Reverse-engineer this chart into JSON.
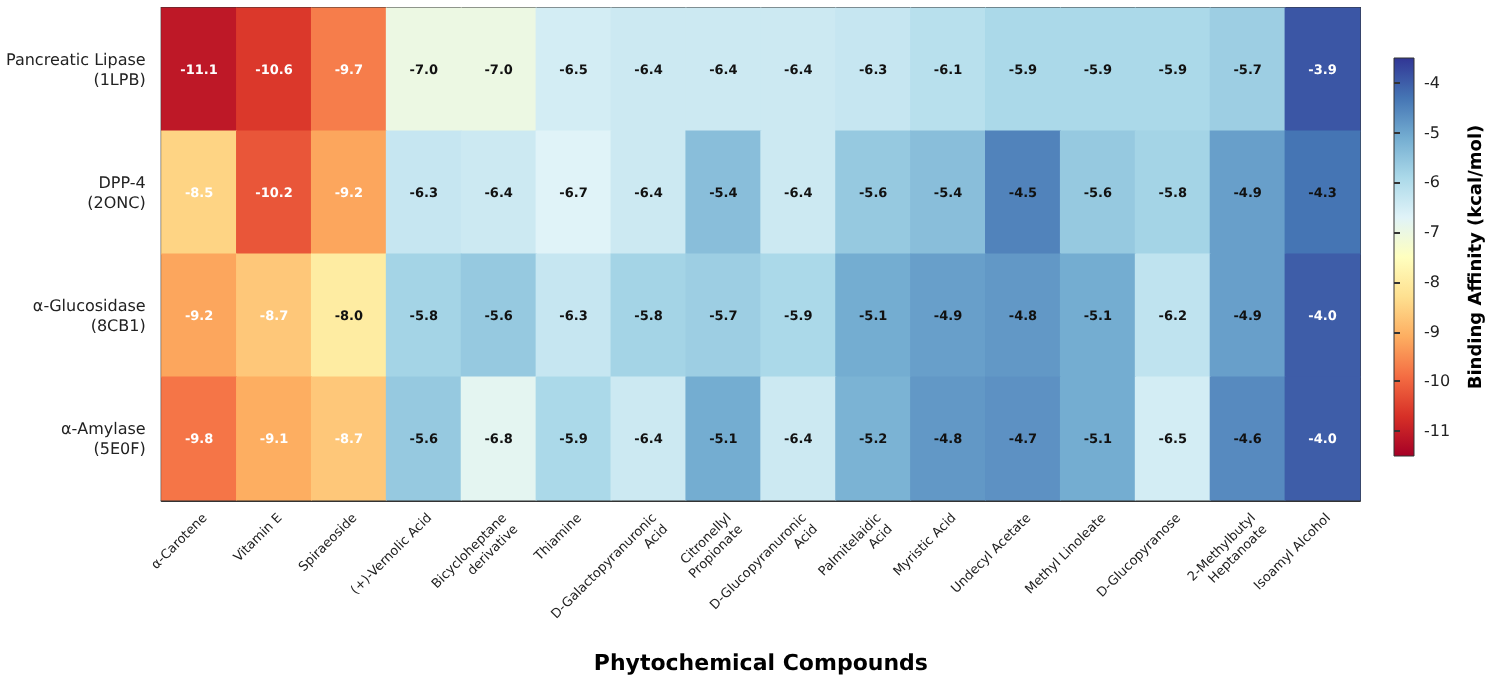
{
  "chart_data": {
    "type": "heatmap",
    "xlabel": "Phytochemical Compounds",
    "clabel": "Binding Affinity (kcal/mol)",
    "categories": [
      "α-Carotene",
      "Vitamin E",
      "Spiraeoside",
      "(+)-Vernolic Acid",
      "Bicycloheptane\nderivative",
      "Thiamine",
      "D-Galactopyranuronic\nAcid",
      "Citronellyl\nPropionate",
      "D-Glucopyranuronic\nAcid",
      "Palmitelaidic\nAcid",
      "Myristic Acid",
      "Undecyl Acetate",
      "Methyl Linoleate",
      "D-Glucopyranose",
      "2-Methylbutyl\nHeptanoate",
      "Isoamyl Alcohol"
    ],
    "y_categories": [
      "Pancreatic Lipase\n(1LPB)",
      "DPP-4\n(2ONC)",
      "α-Glucosidase\n(8CB1)",
      "α-Amylase\n(5E0F)"
    ],
    "cells": [
      [
        -11.1,
        -10.6,
        -9.7,
        -7.0,
        -7.0,
        -6.5,
        -6.4,
        -6.4,
        -6.4,
        -6.3,
        -6.1,
        -5.9,
        -5.9,
        -5.9,
        -5.7,
        -3.9
      ],
      [
        -8.5,
        -10.2,
        -9.2,
        -6.3,
        -6.4,
        -6.7,
        -6.4,
        -5.4,
        -6.4,
        -5.6,
        -5.4,
        -4.5,
        -5.6,
        -5.8,
        -4.9,
        -4.3
      ],
      [
        -9.2,
        -8.7,
        -8.0,
        -5.8,
        -5.6,
        -6.3,
        -5.8,
        -5.7,
        -5.9,
        -5.1,
        -4.9,
        -4.8,
        -5.1,
        -6.2,
        -4.9,
        -4.0
      ],
      [
        -9.8,
        -9.1,
        -8.7,
        -5.6,
        -6.8,
        -5.9,
        -6.4,
        -5.1,
        -6.4,
        -5.2,
        -4.8,
        -4.7,
        -5.1,
        -6.5,
        -4.6,
        -4.0
      ]
    ],
    "cell_labels": [
      [
        "-11.1",
        "-10.6",
        "-9.7",
        "-7.0",
        "-7.0",
        "-6.5",
        "-6.4",
        "-6.4",
        "-6.4",
        "-6.3",
        "-6.1",
        "-5.9",
        "-5.9",
        "-5.9",
        "-5.7",
        "-3.9"
      ],
      [
        "-8.5",
        "-10.2",
        "-9.2",
        "-6.3",
        "-6.4",
        "-6.7",
        "-6.4",
        "-5.4",
        "-6.4",
        "-5.6",
        "-5.4",
        "-4.5",
        "-5.6",
        "-5.8",
        "-4.9",
        "-4.3"
      ],
      [
        "-9.2",
        "-8.7",
        "-8.0",
        "-5.8",
        "-5.6",
        "-6.3",
        "-5.8",
        "-5.7",
        "-5.9",
        "-5.1",
        "-4.9",
        "-4.8",
        "-5.1",
        "-6.2",
        "-4.9",
        "-4.0"
      ],
      [
        "-9.8",
        "-9.1",
        "-8.7",
        "-5.6",
        "-6.8",
        "-5.9",
        "-6.4",
        "-5.1",
        "-6.4",
        "-5.2",
        "-4.8",
        "-4.7",
        "-5.1",
        "-6.5",
        "-4.6",
        "-4.0"
      ]
    ],
    "clim": [
      -11.5,
      -3.5
    ],
    "cticks": [
      -11,
      -10,
      -9,
      -8,
      -7,
      -6,
      -5,
      -4
    ]
  }
}
